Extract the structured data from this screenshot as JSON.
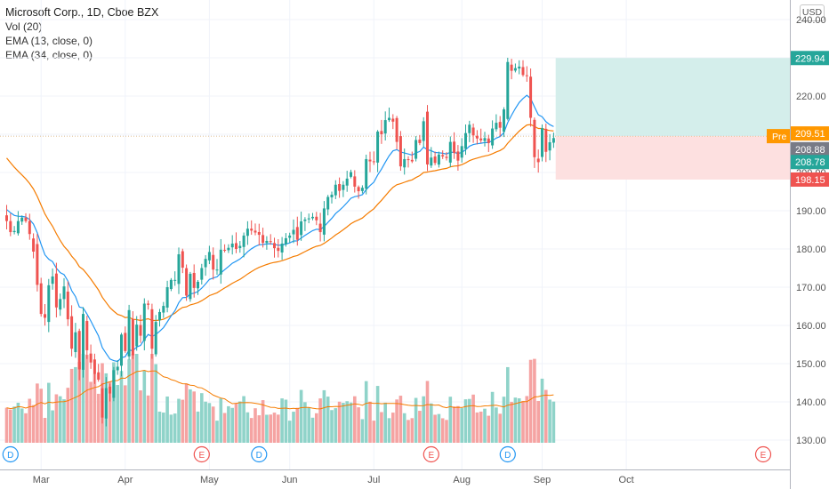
{
  "legend": {
    "title": "Microsoft Corp., 1D, Cboe BZX",
    "vol": "Vol (20)",
    "ema13": "EMA (13, close, 0)",
    "ema34": "EMA (34, close, 0)"
  },
  "currency": "USD",
  "colors": {
    "up": "#26a69a",
    "down": "#ef5350",
    "vol_up": "#8fd3c9",
    "vol_down": "#f5a3a2",
    "ema13": "#2196f3",
    "ema34": "#f57c00",
    "profit_zone": "#d4eeeb",
    "loss_zone": "#fde0e0",
    "pre_badge": "#ff9800",
    "last_badge": "#787b86"
  },
  "chart_data": {
    "type": "candlestick",
    "symbol": "Microsoft Corp.",
    "interval": "1D",
    "exchange": "Cboe BZX",
    "y_ticks": [
      "130.00",
      "140.00",
      "150.00",
      "160.00",
      "170.00",
      "180.00",
      "190.00",
      "200.00",
      "210.00",
      "220.00",
      "230.00",
      "240.00"
    ],
    "ylim": [
      126,
      245
    ],
    "x_ticks": [
      {
        "date": "2020-03-02",
        "label": "Mar"
      },
      {
        "date": "2020-04-01",
        "label": "Apr"
      },
      {
        "date": "2020-05-01",
        "label": "May"
      },
      {
        "date": "2020-06-01",
        "label": "Jun"
      },
      {
        "date": "2020-07-01",
        "label": "Jul"
      },
      {
        "date": "2020-08-03",
        "label": "Aug"
      },
      {
        "date": "2020-09-01",
        "label": "Sep"
      },
      {
        "date": "2020-10-01",
        "label": "Oct"
      }
    ],
    "start_date": "2020-02-18",
    "closes": [
      187.3,
      184.4,
      184.7,
      187.3,
      188.2,
      187.3,
      183.9,
      179.3,
      170.6,
      163.0,
      162.0,
      170.5,
      172.8,
      164.7,
      166.9,
      170.2,
      161.6,
      153.9,
      158.2,
      148.5,
      163.0,
      153.5,
      150.3,
      147.3,
      145.8,
      135.9,
      143.6,
      142.2,
      148.3,
      149.2,
      157.6,
      153.3,
      164.0,
      152.2,
      160.2,
      157.3,
      165.7,
      165.4,
      153.9,
      160.9,
      163.5,
      165.1,
      170.0,
      171.9,
      171.9,
      178.6,
      175.1,
      167.8,
      173.5,
      169.8,
      171.4,
      175.0,
      177.4,
      179.2,
      174.6,
      174.6,
      179.8,
      179.7,
      180.3,
      181.4,
      180.0,
      180.8,
      183.5,
      185.3,
      184.8,
      184.3,
      183.7,
      181.6,
      182.1,
      181.8,
      180.2,
      179.5,
      181.4,
      182.8,
      183.5,
      185.0,
      182.4,
      187.2,
      187.7,
      188.0,
      188.4,
      187.5,
      184.4,
      190.6,
      193.6,
      194.2,
      196.8,
      195.2,
      196.8,
      198.4,
      200.1,
      196.3,
      195.1,
      196.0,
      203.5,
      202.9,
      202.8,
      210.7,
      210.0,
      213.7,
      214.3,
      213.3,
      208.0,
      201.6,
      203.5,
      203.4,
      202.9,
      208.5,
      207.7,
      213.4,
      202.1,
      203.9,
      202.5,
      204.7,
      204.2,
      203.8,
      208.0,
      205.1,
      203.1,
      206.9,
      210.3,
      212.5,
      209.7,
      208.9,
      208.4,
      209.0,
      207.7,
      211.5,
      213.0,
      211.7,
      216.5,
      228.9,
      226.6,
      227.3,
      227.7,
      225.5,
      225.2,
      214.3,
      204.0,
      202.7,
      211.6,
      205.4,
      207.9,
      209.0
    ],
    "volume_scale_note": "relative",
    "events": [
      {
        "date": "2020-02-19",
        "type": "dividend",
        "label": "D"
      },
      {
        "date": "2020-04-29",
        "type": "earnings",
        "label": "E"
      },
      {
        "date": "2020-05-20",
        "type": "dividend",
        "label": "D"
      },
      {
        "date": "2020-07-22",
        "type": "earnings",
        "label": "E"
      },
      {
        "date": "2020-08-19",
        "type": "dividend",
        "label": "D"
      },
      {
        "date": "2020-10-22",
        "type": "earnings",
        "label": "E"
      }
    ],
    "position": {
      "target": 229.94,
      "entry": 209.51,
      "stop": 198.15
    },
    "price_labels": {
      "target": "229.94",
      "pre_tag": "Pre",
      "pre_price": "209.51",
      "last": "208.88",
      "ema13": "208.78",
      "stop": "198.15"
    },
    "series": [
      {
        "name": "Vol (20)"
      },
      {
        "name": "EMA (13, close, 0)"
      },
      {
        "name": "EMA (34, close, 0)"
      }
    ]
  }
}
